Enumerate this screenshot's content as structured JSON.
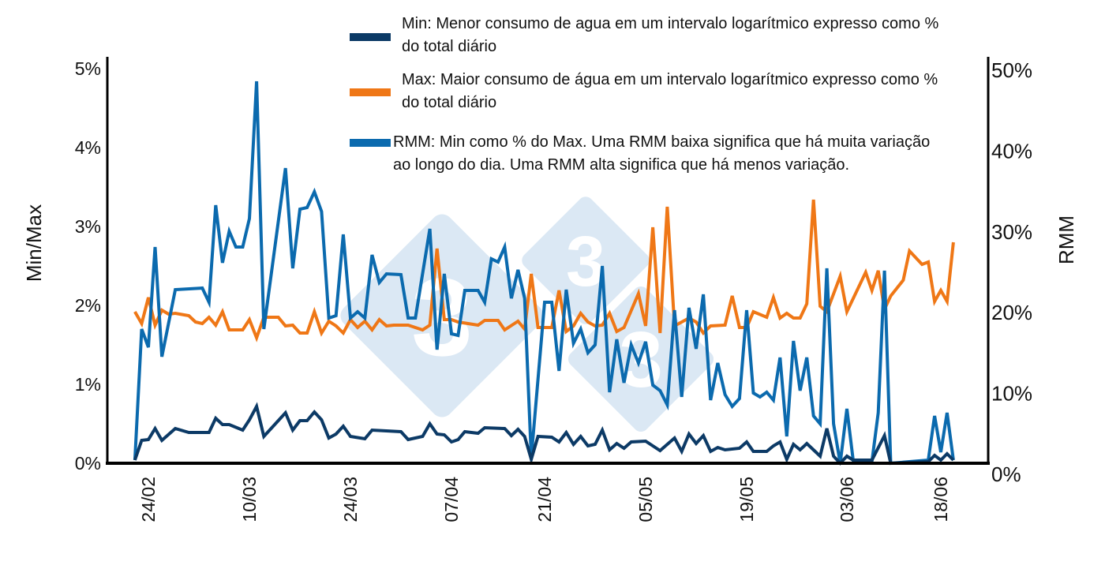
{
  "chart_data": {
    "type": "line",
    "title": "",
    "ylabel_left": "Min/Max",
    "ylabel_right": "RMM",
    "ylim_left": [
      0,
      5
    ],
    "ylim_right": [
      0,
      50
    ],
    "yticks_left": [
      "0%",
      "1%",
      "2%",
      "3%",
      "4%",
      "5%"
    ],
    "yticks_right": [
      "0%",
      "10%",
      "20%",
      "30%",
      "40%",
      "50%"
    ],
    "xticks": [
      "24/02",
      "10/03",
      "24/03",
      "07/04",
      "21/04",
      "05/05",
      "19/05",
      "03/06",
      "18/06"
    ],
    "grid": false,
    "legend_position": "top",
    "series": [
      {
        "name": "Min",
        "legend": "Min: Menor consumo de agua em um intervalo logarítmico expresso como % do total diário",
        "axis": "left",
        "color": "#0c3a66",
        "points": [
          [
            "22/02",
            0.04
          ],
          [
            "23/02",
            0.29
          ],
          [
            "24/02",
            0.3
          ],
          [
            "25/02",
            0.44
          ],
          [
            "26/02",
            0.29
          ],
          [
            "28/02",
            0.44
          ],
          [
            "01/03",
            0.39
          ],
          [
            "04/03",
            0.39
          ],
          [
            "05/03",
            0.57
          ],
          [
            "06/03",
            0.49
          ],
          [
            "07/03",
            0.49
          ],
          [
            "09/03",
            0.42
          ],
          [
            "10/03",
            0.55
          ],
          [
            "11/03",
            0.72
          ],
          [
            "12/03",
            0.34
          ],
          [
            "14/03",
            0.54
          ],
          [
            "15/03",
            0.64
          ],
          [
            "16/03",
            0.42
          ],
          [
            "17/03",
            0.54
          ],
          [
            "18/03",
            0.54
          ],
          [
            "19/03",
            0.65
          ],
          [
            "20/03",
            0.55
          ],
          [
            "21/03",
            0.32
          ],
          [
            "22/03",
            0.37
          ],
          [
            "23/03",
            0.47
          ],
          [
            "24/03",
            0.34
          ],
          [
            "26/03",
            0.31
          ],
          [
            "27/03",
            0.42
          ],
          [
            "31/03",
            0.4
          ],
          [
            "01/04",
            0.3
          ],
          [
            "03/04",
            0.34
          ],
          [
            "04/04",
            0.5
          ],
          [
            "05/04",
            0.37
          ],
          [
            "06/04",
            0.36
          ],
          [
            "07/04",
            0.27
          ],
          [
            "08/04",
            0.3
          ],
          [
            "09/04",
            0.4
          ],
          [
            "11/04",
            0.38
          ],
          [
            "12/04",
            0.45
          ],
          [
            "15/04",
            0.44
          ],
          [
            "16/04",
            0.35
          ],
          [
            "17/04",
            0.43
          ],
          [
            "18/04",
            0.34
          ],
          [
            "19/04",
            0.05
          ],
          [
            "20/04",
            0.34
          ],
          [
            "22/04",
            0.33
          ],
          [
            "23/04",
            0.27
          ],
          [
            "24/04",
            0.39
          ],
          [
            "25/04",
            0.24
          ],
          [
            "26/04",
            0.34
          ],
          [
            "27/04",
            0.22
          ],
          [
            "28/04",
            0.24
          ],
          [
            "29/04",
            0.42
          ],
          [
            "30/04",
            0.17
          ],
          [
            "01/05",
            0.25
          ],
          [
            "02/05",
            0.19
          ],
          [
            "03/05",
            0.27
          ],
          [
            "05/05",
            0.28
          ],
          [
            "07/05",
            0.16
          ],
          [
            "09/05",
            0.32
          ],
          [
            "10/05",
            0.15
          ],
          [
            "11/05",
            0.37
          ],
          [
            "12/05",
            0.25
          ],
          [
            "13/05",
            0.35
          ],
          [
            "14/05",
            0.15
          ],
          [
            "15/05",
            0.2
          ],
          [
            "16/05",
            0.17
          ],
          [
            "18/05",
            0.19
          ],
          [
            "19/05",
            0.27
          ],
          [
            "20/05",
            0.15
          ],
          [
            "22/05",
            0.15
          ],
          [
            "23/05",
            0.22
          ],
          [
            "24/05",
            0.27
          ],
          [
            "25/05",
            0.05
          ],
          [
            "26/05",
            0.24
          ],
          [
            "27/05",
            0.17
          ],
          [
            "28/05",
            0.25
          ],
          [
            "30/05",
            0.09
          ],
          [
            "31/05",
            0.44
          ],
          [
            "01/06",
            0.09
          ],
          [
            "02/06",
            0.0
          ],
          [
            "03/06",
            0.09
          ],
          [
            "04/06",
            0.04
          ],
          [
            "07/06",
            0.04
          ],
          [
            "09/06",
            0.35
          ],
          [
            "10/06",
            0.0
          ],
          [
            "16/06",
            0.02
          ],
          [
            "17/06",
            0.1
          ],
          [
            "18/06",
            0.04
          ],
          [
            "19/06",
            0.12
          ],
          [
            "20/06",
            0.04
          ]
        ]
      },
      {
        "name": "Max",
        "legend": "Max: Maior consumo de água em um intervalo logarítmico expresso como % do total diário",
        "axis": "left",
        "color": "#ef7716",
        "points": [
          [
            "22/02",
            1.92
          ],
          [
            "23/02",
            1.77
          ],
          [
            "24/02",
            2.1
          ],
          [
            "25/02",
            1.75
          ],
          [
            "26/02",
            1.94
          ],
          [
            "27/02",
            1.89
          ],
          [
            "28/02",
            1.9
          ],
          [
            "01/03",
            1.87
          ],
          [
            "02/03",
            1.79
          ],
          [
            "03/03",
            1.77
          ],
          [
            "04/03",
            1.85
          ],
          [
            "05/03",
            1.75
          ],
          [
            "06/03",
            1.92
          ],
          [
            "07/03",
            1.69
          ],
          [
            "09/03",
            1.69
          ],
          [
            "10/03",
            1.82
          ],
          [
            "11/03",
            1.59
          ],
          [
            "12/03",
            1.85
          ],
          [
            "14/03",
            1.85
          ],
          [
            "15/03",
            1.74
          ],
          [
            "16/03",
            1.75
          ],
          [
            "17/03",
            1.65
          ],
          [
            "18/03",
            1.65
          ],
          [
            "19/03",
            1.92
          ],
          [
            "20/03",
            1.65
          ],
          [
            "21/03",
            1.8
          ],
          [
            "22/03",
            1.74
          ],
          [
            "23/03",
            1.65
          ],
          [
            "24/03",
            1.82
          ],
          [
            "25/03",
            1.72
          ],
          [
            "26/03",
            1.8
          ],
          [
            "27/03",
            1.69
          ],
          [
            "28/03",
            1.82
          ],
          [
            "29/03",
            1.74
          ],
          [
            "30/03",
            1.75
          ],
          [
            "01/04",
            1.75
          ],
          [
            "03/04",
            1.69
          ],
          [
            "04/04",
            1.75
          ],
          [
            "05/04",
            2.72
          ],
          [
            "06/04",
            1.82
          ],
          [
            "07/04",
            1.82
          ],
          [
            "08/04",
            1.79
          ],
          [
            "11/04",
            1.75
          ],
          [
            "12/04",
            1.81
          ],
          [
            "14/04",
            1.81
          ],
          [
            "15/04",
            1.69
          ],
          [
            "17/04",
            1.8
          ],
          [
            "18/04",
            1.7
          ],
          [
            "19/04",
            2.4
          ],
          [
            "20/04",
            1.72
          ],
          [
            "22/04",
            1.72
          ],
          [
            "23/04",
            2.19
          ],
          [
            "24/04",
            1.67
          ],
          [
            "25/04",
            1.74
          ],
          [
            "26/04",
            1.9
          ],
          [
            "27/04",
            1.79
          ],
          [
            "28/04",
            1.74
          ],
          [
            "29/04",
            1.75
          ],
          [
            "30/04",
            1.9
          ],
          [
            "01/05",
            1.67
          ],
          [
            "02/05",
            1.72
          ],
          [
            "04/05",
            2.15
          ],
          [
            "05/05",
            1.74
          ],
          [
            "06/05",
            2.99
          ],
          [
            "07/05",
            1.65
          ],
          [
            "08/05",
            3.25
          ],
          [
            "09/05",
            1.74
          ],
          [
            "11/05",
            1.84
          ],
          [
            "12/05",
            1.79
          ],
          [
            "13/05",
            1.65
          ],
          [
            "14/05",
            1.74
          ],
          [
            "16/05",
            1.75
          ],
          [
            "17/05",
            2.12
          ],
          [
            "18/05",
            1.72
          ],
          [
            "19/05",
            1.72
          ],
          [
            "20/05",
            1.92
          ],
          [
            "22/05",
            1.85
          ],
          [
            "23/05",
            2.1
          ],
          [
            "24/05",
            1.84
          ],
          [
            "25/05",
            1.9
          ],
          [
            "26/05",
            1.84
          ],
          [
            "27/05",
            1.84
          ],
          [
            "28/05",
            2.02
          ],
          [
            "29/05",
            3.34
          ],
          [
            "30/05",
            1.99
          ],
          [
            "31/05",
            1.92
          ],
          [
            "02/06",
            2.37
          ],
          [
            "03/06",
            1.92
          ],
          [
            "06/06",
            2.42
          ],
          [
            "07/06",
            2.19
          ],
          [
            "08/06",
            2.44
          ],
          [
            "09/06",
            1.95
          ],
          [
            "10/06",
            2.12
          ],
          [
            "12/06",
            2.32
          ],
          [
            "13/06",
            2.69
          ],
          [
            "15/06",
            2.52
          ],
          [
            "16/06",
            2.55
          ],
          [
            "17/06",
            2.05
          ],
          [
            "18/06",
            2.19
          ],
          [
            "19/06",
            2.05
          ],
          [
            "20/06",
            2.8
          ]
        ]
      },
      {
        "name": "RMM",
        "legend": "RMM: Min como % do Max. Uma RMM baixa significa que há muita variação ao longo do dia. Uma RMM alta significa que há menos variação.",
        "axis": "right",
        "color": "#0b6aae",
        "points": [
          [
            "22/02",
            0.4
          ],
          [
            "23/02",
            17
          ],
          [
            "24/02",
            14.7
          ],
          [
            "25/02",
            27.4
          ],
          [
            "26/02",
            13.5
          ],
          [
            "28/02",
            22
          ],
          [
            "03/03",
            22.2
          ],
          [
            "04/03",
            20.4
          ],
          [
            "05/03",
            32.7
          ],
          [
            "06/03",
            25.4
          ],
          [
            "07/03",
            29.4
          ],
          [
            "08/03",
            27.4
          ],
          [
            "09/03",
            27.4
          ],
          [
            "10/03",
            31
          ],
          [
            "11/03",
            48.4
          ],
          [
            "12/03",
            17
          ],
          [
            "15/03",
            37.4
          ],
          [
            "16/03",
            24.7
          ],
          [
            "17/03",
            32.2
          ],
          [
            "18/03",
            32.4
          ],
          [
            "19/03",
            34.4
          ],
          [
            "20/03",
            31.9
          ],
          [
            "21/03",
            18.4
          ],
          [
            "22/03",
            18.7
          ],
          [
            "23/03",
            29
          ],
          [
            "24/03",
            18.4
          ],
          [
            "25/03",
            19.2
          ],
          [
            "26/03",
            18.4
          ],
          [
            "27/03",
            26.4
          ],
          [
            "28/03",
            22.9
          ],
          [
            "29/03",
            24
          ],
          [
            "31/03",
            23.9
          ],
          [
            "01/04",
            18.4
          ],
          [
            "02/04",
            18.4
          ],
          [
            "04/04",
            29.7
          ],
          [
            "05/04",
            14.4
          ],
          [
            "06/04",
            24
          ],
          [
            "07/04",
            16.4
          ],
          [
            "08/04",
            16.2
          ],
          [
            "09/04",
            21.9
          ],
          [
            "11/04",
            21.9
          ],
          [
            "12/04",
            20.4
          ],
          [
            "13/04",
            25.9
          ],
          [
            "14/04",
            25.5
          ],
          [
            "15/04",
            27.4
          ],
          [
            "16/04",
            20.9
          ],
          [
            "17/04",
            24.5
          ],
          [
            "18/04",
            20.9
          ],
          [
            "19/04",
            0.7
          ],
          [
            "21/04",
            20.4
          ],
          [
            "22/04",
            20.4
          ],
          [
            "23/04",
            11.7
          ],
          [
            "24/04",
            22
          ],
          [
            "25/04",
            15.2
          ],
          [
            "26/04",
            17
          ],
          [
            "27/04",
            14
          ],
          [
            "28/04",
            15
          ],
          [
            "29/04",
            25
          ],
          [
            "30/04",
            9
          ],
          [
            "01/05",
            15.7
          ],
          [
            "02/05",
            10.2
          ],
          [
            "03/05",
            15
          ],
          [
            "04/05",
            12.7
          ],
          [
            "05/05",
            15.4
          ],
          [
            "06/05",
            9.9
          ],
          [
            "07/05",
            9.2
          ],
          [
            "08/05",
            7.4
          ],
          [
            "09/05",
            19.4
          ],
          [
            "10/05",
            8.4
          ],
          [
            "11/05",
            19.7
          ],
          [
            "12/05",
            14.5
          ],
          [
            "13/05",
            21.4
          ],
          [
            "14/05",
            8
          ],
          [
            "15/05",
            12.7
          ],
          [
            "16/05",
            8.7
          ],
          [
            "17/05",
            7.2
          ],
          [
            "18/05",
            8.2
          ],
          [
            "19/05",
            19.4
          ],
          [
            "20/05",
            8.9
          ],
          [
            "21/05",
            8.4
          ],
          [
            "22/05",
            9
          ],
          [
            "23/05",
            8
          ],
          [
            "24/05",
            13.4
          ],
          [
            "25/05",
            3.4
          ],
          [
            "26/05",
            15.5
          ],
          [
            "27/05",
            9.2
          ],
          [
            "28/05",
            13.4
          ],
          [
            "29/05",
            6
          ],
          [
            "30/05",
            5
          ],
          [
            "31/05",
            24.7
          ],
          [
            "01/06",
            5
          ],
          [
            "02/06",
            0
          ],
          [
            "03/06",
            6.9
          ],
          [
            "04/06",
            0.4
          ],
          [
            "07/06",
            0.2
          ],
          [
            "08/06",
            6.4
          ],
          [
            "09/06",
            24.4
          ],
          [
            "10/06",
            0
          ],
          [
            "16/06",
            0.4
          ],
          [
            "17/06",
            6
          ],
          [
            "18/06",
            1.4
          ],
          [
            "19/06",
            6.4
          ],
          [
            "20/06",
            0.4
          ]
        ]
      }
    ]
  }
}
